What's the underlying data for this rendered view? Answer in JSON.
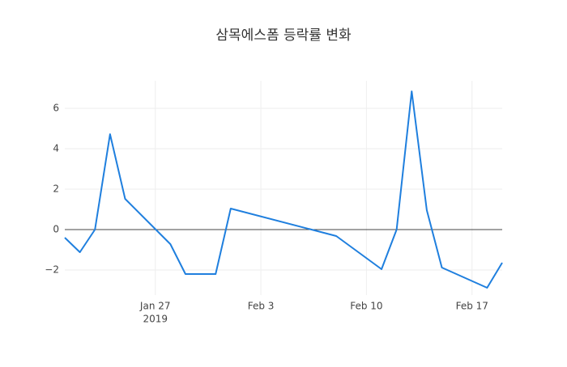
{
  "chart_data": {
    "type": "line",
    "title": "삼목에스폼 등락률 변화",
    "x": [
      "2019-01-21",
      "2019-01-22",
      "2019-01-23",
      "2019-01-24",
      "2019-01-25",
      "2019-01-28",
      "2019-01-29",
      "2019-01-31",
      "2019-02-01",
      "2019-02-08",
      "2019-02-11",
      "2019-02-12",
      "2019-02-13",
      "2019-02-14",
      "2019-02-15",
      "2019-02-18",
      "2019-02-19"
    ],
    "series": [
      {
        "color": "#1f7fde",
        "values": [
          -0.4,
          -1.12,
          0,
          4.72,
          1.52,
          -0.72,
          -2.2,
          -2.2,
          1.04,
          -0.32,
          -1.96,
          0,
          6.84,
          0.96,
          -1.88,
          -2.88,
          -1.64
        ]
      }
    ],
    "xlim": [
      "2019-01-21",
      "2019-02-19"
    ],
    "xticks": [
      {
        "value": "2019-01-27",
        "label": "Jan 27"
      },
      {
        "value": "2019-02-03",
        "label": "Feb 3"
      },
      {
        "value": "2019-02-10",
        "label": "Feb 10"
      },
      {
        "value": "2019-02-17",
        "label": "Feb 17"
      }
    ],
    "x_year_label": "2019",
    "ylim": [
      -3.24,
      7.36
    ],
    "yticks": [
      {
        "value": -2,
        "label": "−2"
      },
      0,
      2,
      4,
      6
    ],
    "grid": true,
    "zeroline": true
  }
}
